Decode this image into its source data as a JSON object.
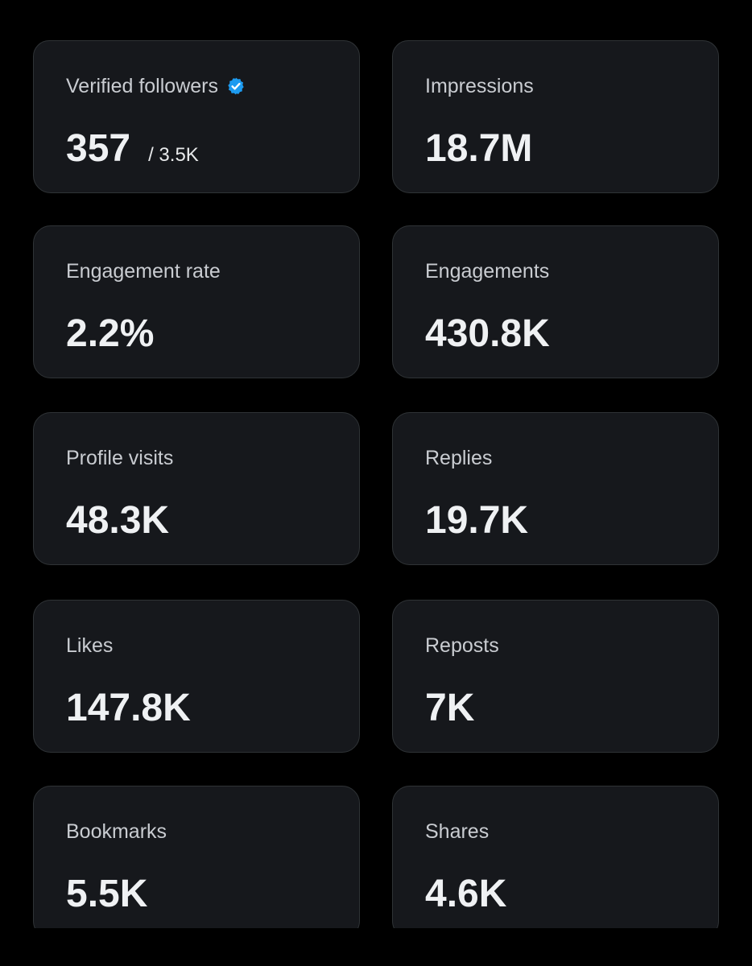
{
  "colors": {
    "background": "#000000",
    "card": "#16181c",
    "card_border": "#2f3336",
    "label": "#c9ccd1",
    "value": "#eff1f3",
    "verified_badge": "#1d9bf0"
  },
  "metrics": [
    {
      "label": "Verified followers",
      "value": "357",
      "sub": "/ 3.5K",
      "icon": "verified-badge-icon"
    },
    {
      "label": "Impressions",
      "value": "18.7M"
    },
    {
      "label": "Engagement rate",
      "value": "2.2%"
    },
    {
      "label": "Engagements",
      "value": "430.8K"
    },
    {
      "label": "Profile visits",
      "value": "48.3K"
    },
    {
      "label": "Replies",
      "value": "19.7K"
    },
    {
      "label": "Likes",
      "value": "147.8K"
    },
    {
      "label": "Reposts",
      "value": "7K"
    },
    {
      "label": "Bookmarks",
      "value": "5.5K"
    },
    {
      "label": "Shares",
      "value": "4.6K"
    }
  ]
}
